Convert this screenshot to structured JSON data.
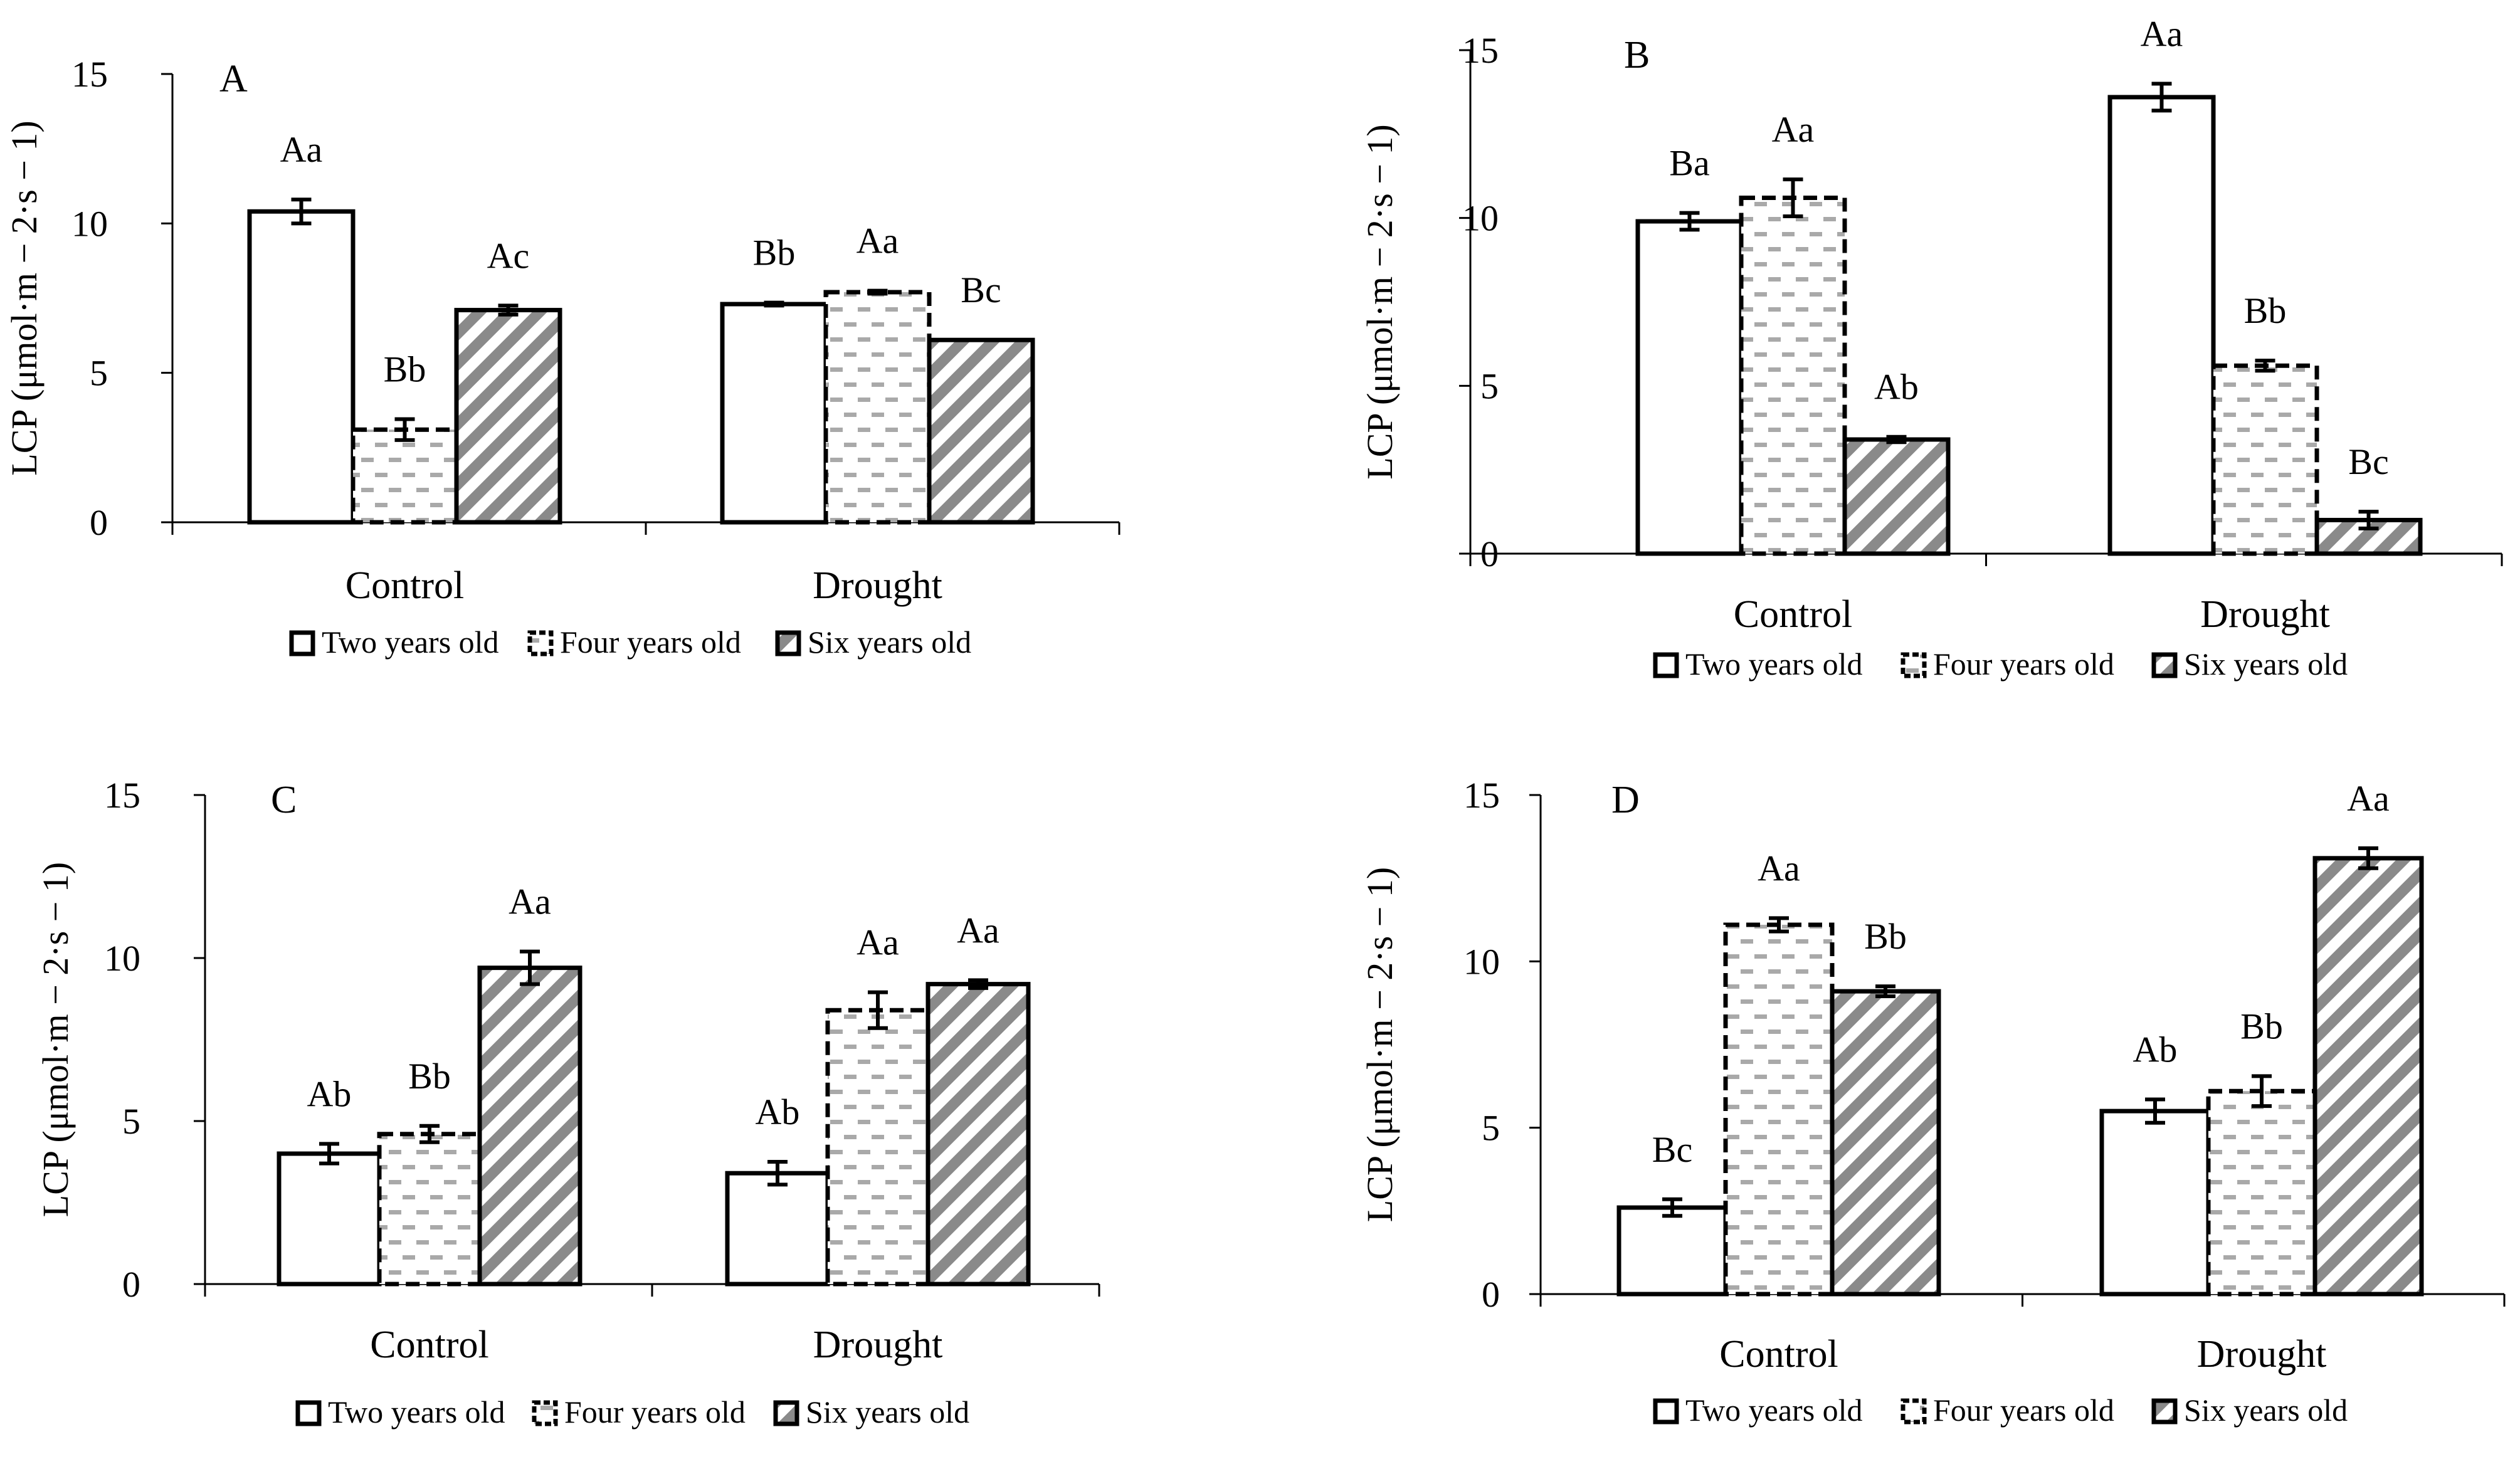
{
  "chart_data": [
    {
      "type": "bar",
      "panel": "A",
      "categories": [
        "Control",
        "Drought"
      ],
      "ylabel": "LCP (μmol·m − 2·s − 1)",
      "ylim": [
        0,
        15
      ],
      "yticks": [
        "0",
        "5",
        "10",
        "15"
      ],
      "legend": [
        "Two years old",
        "Four years old",
        "Six years old"
      ],
      "series": [
        {
          "name": "Two years old",
          "values": [
            10.4,
            7.3
          ],
          "errors": [
            0.4,
            0.05
          ],
          "labels": [
            "Aa",
            "Bb"
          ]
        },
        {
          "name": "Four years old",
          "values": [
            3.1,
            7.7
          ],
          "errors": [
            0.35,
            0.05
          ],
          "labels": [
            "Bb",
            "Aa"
          ]
        },
        {
          "name": "Six years old",
          "values": [
            7.1,
            6.1
          ],
          "errors": [
            0.15,
            0.0
          ],
          "labels": [
            "Ac",
            "Bc"
          ]
        }
      ]
    },
    {
      "type": "bar",
      "panel": "B",
      "categories": [
        "Control",
        "Drought"
      ],
      "ylabel": "LCP (μmol·m − 2·s − 1)",
      "ylim": [
        0,
        15
      ],
      "yticks": [
        "0",
        "5",
        "10",
        "15"
      ],
      "legend": [
        "Two years old",
        "Four years old",
        "Six years old"
      ],
      "series": [
        {
          "name": "Two years old",
          "values": [
            9.9,
            13.6
          ],
          "errors": [
            0.25,
            0.4
          ],
          "labels": [
            "Ba",
            "Aa"
          ]
        },
        {
          "name": "Four years old",
          "values": [
            10.6,
            5.6
          ],
          "errors": [
            0.55,
            0.15
          ],
          "labels": [
            "Aa",
            "Bb"
          ]
        },
        {
          "name": "Six years old",
          "values": [
            3.4,
            1.0
          ],
          "errors": [
            0.08,
            0.25
          ],
          "labels": [
            "Ab",
            "Bc"
          ]
        }
      ]
    },
    {
      "type": "bar",
      "panel": "C",
      "categories": [
        "Control",
        "Drought"
      ],
      "ylabel": "LCP (μmol·m − 2·s − 1)",
      "ylim": [
        0,
        15
      ],
      "yticks": [
        "0",
        "5",
        "10",
        "15"
      ],
      "legend": [
        "Two years old",
        "Four years old",
        "Six years old"
      ],
      "series": [
        {
          "name": "Two years old",
          "values": [
            4.0,
            3.4
          ],
          "errors": [
            0.3,
            0.35
          ],
          "labels": [
            "Ab",
            "Ab"
          ]
        },
        {
          "name": "Four years old",
          "values": [
            4.6,
            8.4
          ],
          "errors": [
            0.25,
            0.55
          ],
          "labels": [
            "Bb",
            "Aa"
          ]
        },
        {
          "name": "Six years old",
          "values": [
            9.7,
            9.2
          ],
          "errors": [
            0.5,
            0.12
          ],
          "labels": [
            "Aa",
            "Aa"
          ]
        }
      ]
    },
    {
      "type": "bar",
      "panel": "D",
      "categories": [
        "Control",
        "Drought"
      ],
      "ylabel": "LCP (μmol·m − 2·s − 1)",
      "ylim": [
        0,
        15
      ],
      "yticks": [
        "0",
        "5",
        "10",
        "15"
      ],
      "legend": [
        "Two years old",
        "Four years old",
        "Six years old"
      ],
      "series": [
        {
          "name": "Two years old",
          "values": [
            2.6,
            5.5
          ],
          "errors": [
            0.25,
            0.35
          ],
          "labels": [
            "Bc",
            "Ab"
          ]
        },
        {
          "name": "Four years old",
          "values": [
            11.1,
            6.1
          ],
          "errors": [
            0.2,
            0.45
          ],
          "labels": [
            "Aa",
            "Bb"
          ]
        },
        {
          "name": "Six years old",
          "values": [
            9.1,
            13.1
          ],
          "errors": [
            0.15,
            0.3
          ],
          "labels": [
            "Bb",
            "Aa"
          ]
        }
      ]
    }
  ]
}
